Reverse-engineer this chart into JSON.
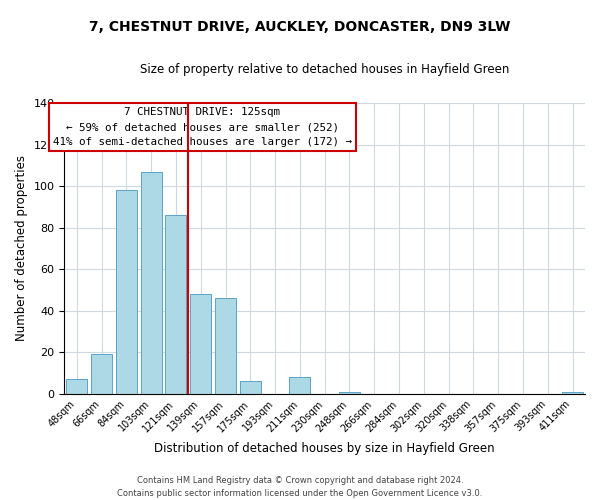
{
  "title": "7, CHESTNUT DRIVE, AUCKLEY, DONCASTER, DN9 3LW",
  "subtitle": "Size of property relative to detached houses in Hayfield Green",
  "xlabel": "Distribution of detached houses by size in Hayfield Green",
  "ylabel": "Number of detached properties",
  "bar_labels": [
    "48sqm",
    "66sqm",
    "84sqm",
    "103sqm",
    "121sqm",
    "139sqm",
    "157sqm",
    "175sqm",
    "193sqm",
    "211sqm",
    "230sqm",
    "248sqm",
    "266sqm",
    "284sqm",
    "302sqm",
    "320sqm",
    "338sqm",
    "357sqm",
    "375sqm",
    "393sqm",
    "411sqm"
  ],
  "bar_values": [
    7,
    19,
    98,
    107,
    86,
    48,
    46,
    6,
    0,
    8,
    0,
    1,
    0,
    0,
    0,
    0,
    0,
    0,
    0,
    0,
    1
  ],
  "bar_color": "#add8e6",
  "bar_edge_color": "#5ba3c9",
  "vline_color": "#cc0000",
  "vline_index": 4,
  "ylim": [
    0,
    140
  ],
  "yticks": [
    0,
    20,
    40,
    60,
    80,
    100,
    120,
    140
  ],
  "annotation_line1": "7 CHESTNUT DRIVE: 125sqm",
  "annotation_line2": "← 59% of detached houses are smaller (252)",
  "annotation_line3": "41% of semi-detached houses are larger (172) →",
  "footer_line1": "Contains HM Land Registry data © Crown copyright and database right 2024.",
  "footer_line2": "Contains public sector information licensed under the Open Government Licence v3.0.",
  "background_color": "#ffffff",
  "grid_color": "#d0d8e0"
}
